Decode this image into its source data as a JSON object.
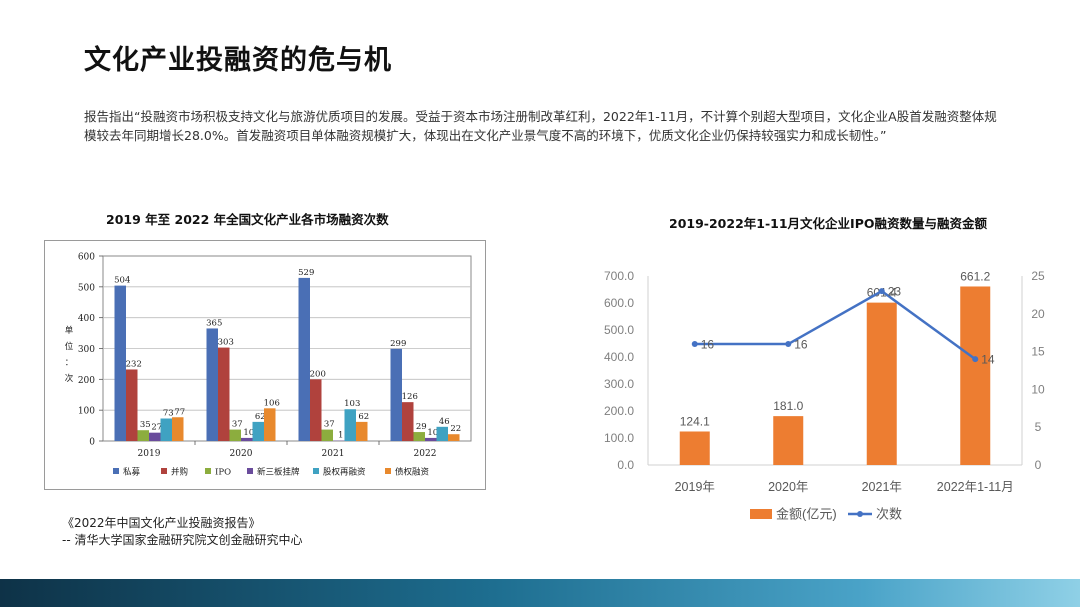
{
  "page": {
    "title": "文化产业投融资的危与机",
    "intro": "报告指出“投融资市场积极支持文化与旅游优质项目的发展。受益于资本市场注册制改革红利，2022年1-11月，不计算个别超大型项目，文化企业A股首发融资整体规模较去年同期增长28.0%。首发融资项目单体融资规模扩大，体现出在文化产业景气度不高的环境下，优质文化企业仍保持较强实力和成长韧性。”",
    "source_line1": "《2022年中国文化产业投融资报告》",
    "source_line2": "-- 清华大学国家金融研究院文创金融研究中心"
  },
  "chart_data": [
    {
      "type": "bar",
      "title": "2019 年至 2022 年全国文化产业各市场融资次数",
      "ylabel": "单位：次",
      "ylabel_chars": [
        "单",
        "位",
        "：",
        "次"
      ],
      "categories": [
        "2019",
        "2020",
        "2021",
        "2022"
      ],
      "ylim": [
        0,
        600
      ],
      "yticks": [
        "0",
        "100",
        "200",
        "300",
        "400",
        "500",
        "600"
      ],
      "grid": true,
      "legend_position": "bottom",
      "series": [
        {
          "name": "私募",
          "color": "#4a6fb5",
          "values": [
            504,
            365,
            529,
            299
          ],
          "labels": [
            "504",
            "365",
            "529",
            "299"
          ]
        },
        {
          "name": "并购",
          "color": "#b0423d",
          "values": [
            232,
            303,
            200,
            126
          ],
          "labels": [
            "232",
            "303",
            "200",
            "126"
          ]
        },
        {
          "name": "IPO",
          "color": "#8cad3e",
          "values": [
            35,
            37,
            37,
            29
          ],
          "labels": [
            "35",
            "37",
            "37",
            "29"
          ]
        },
        {
          "name": "新三板挂牌",
          "color": "#6a4c9c",
          "values": [
            27,
            10,
            1,
            10
          ],
          "labels": [
            "27",
            "10",
            "1",
            "10"
          ]
        },
        {
          "name": "股权再融资",
          "color": "#3fa2c2",
          "values": [
            73,
            62,
            103,
            46
          ],
          "labels": [
            "73",
            "62",
            "103",
            "46"
          ]
        },
        {
          "name": "债权融资",
          "color": "#e8892d",
          "values": [
            77,
            106,
            62,
            22
          ],
          "labels": [
            "77",
            "106",
            "62",
            "22"
          ]
        }
      ]
    },
    {
      "type": "bar+line",
      "title": "2019-2022年1-11月文化企业IPO融资数量与融资金额",
      "categories": [
        "2019年",
        "2020年",
        "2021年",
        "2022年1-11月"
      ],
      "ylim_left": [
        0,
        700
      ],
      "yticks_left": [
        "0.0",
        "100.0",
        "200.0",
        "300.0",
        "400.0",
        "500.0",
        "600.0",
        "700.0"
      ],
      "ylim_right": [
        0,
        25
      ],
      "yticks_right": [
        "0",
        "5",
        "10",
        "15",
        "20",
        "25"
      ],
      "legend_position": "bottom",
      "bar_series": {
        "name": "金额(亿元)",
        "color": "#ed7d31",
        "values": [
          124.1,
          181.0,
          601.4,
          661.2
        ],
        "labels": [
          "124.1",
          "181.0",
          "601.4",
          "661.2"
        ]
      },
      "line_series": {
        "name": "次数",
        "color": "#4472c4",
        "values": [
          16,
          16,
          23,
          14
        ],
        "labels": [
          "16",
          "16",
          "23",
          "14"
        ]
      }
    }
  ]
}
